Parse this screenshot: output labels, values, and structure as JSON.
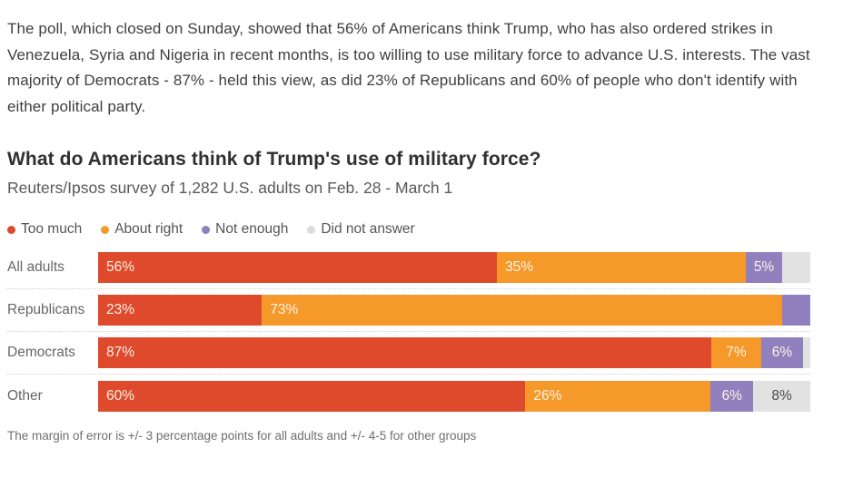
{
  "article": {
    "paragraph": "The poll, which closed on Sunday, showed that 56% of Americans think Trump, who has also ordered strikes in Venezuela, Syria and Nigeria in recent months, is too willing to use military force to advance U.S. interests. The vast majority of Democrats - 87% - held this view, as did 23% of Republicans and 60% of people who don't identify with either political party."
  },
  "chart": {
    "title": "What do Americans think of Trump's use of military force?",
    "subtitle": "Reuters/Ipsos survey of 1,282 U.S. adults on Feb. 28 - March 1",
    "footnote": "The margin of error is +/- 3 percentage points for all adults and +/- 4-5 for other groups"
  },
  "colors": {
    "too_much": "#de4a2b",
    "about_right": "#f5992a",
    "not_enough": "#9080be",
    "did_not_answer": "#e2e2e2",
    "dark_label": "#4c4c4c",
    "light_label": "#fdf3e7"
  },
  "legend": [
    {
      "label": "Too much",
      "color": "#de4a2b"
    },
    {
      "label": "About right",
      "color": "#f5992a"
    },
    {
      "label": "Not enough",
      "color": "#9080be"
    },
    {
      "label": "Did not answer",
      "color": "#dcdcdc"
    }
  ],
  "chart_data": {
    "type": "bar",
    "stacked": true,
    "orientation": "horizontal",
    "unit": "percent",
    "xlim": [
      0,
      100
    ],
    "grid": false,
    "legend_position": "top",
    "categories": [
      "All adults",
      "Republicans",
      "Democrats",
      "Other"
    ],
    "series": [
      {
        "name": "Too much",
        "color": "#de4a2b",
        "values": [
          56,
          23,
          87,
          60
        ]
      },
      {
        "name": "About right",
        "color": "#f5992a",
        "values": [
          35,
          73,
          7,
          26
        ]
      },
      {
        "name": "Not enough",
        "color": "#9080be",
        "values": [
          5,
          4,
          6,
          6
        ]
      },
      {
        "name": "Did not answer",
        "color": "#e2e2e2",
        "values": [
          4,
          0,
          1,
          8
        ]
      }
    ],
    "segment_labels": [
      [
        "56%",
        "35%",
        "5%",
        ""
      ],
      [
        "23%",
        "73%",
        "",
        ""
      ],
      [
        "87%",
        "7%",
        "6%",
        ""
      ],
      [
        "60%",
        "26%",
        "6%",
        "8%"
      ]
    ]
  }
}
